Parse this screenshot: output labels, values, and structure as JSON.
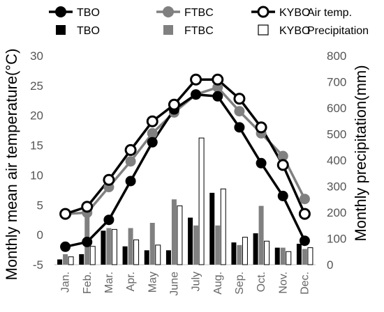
{
  "chart_data": {
    "type": "line+bar (climate diagram)",
    "categories": [
      "Jan.",
      "Feb.",
      "Mar.",
      "Apr.",
      "May",
      "June",
      "July",
      "Aug.",
      "Sep.",
      "Oct.",
      "Nov.",
      "Dec."
    ],
    "left_axis": {
      "label": "Monthly mean air temperature(°C)",
      "ylim": [
        -5,
        30
      ],
      "ticks": [
        -5,
        0,
        5,
        10,
        15,
        20,
        25,
        30
      ]
    },
    "right_axis": {
      "label": "Monthly precipitation(mm)",
      "ylim": [
        0,
        800
      ],
      "ticks": [
        0,
        100,
        200,
        300,
        400,
        500,
        600,
        700,
        800
      ]
    },
    "temperature_series": [
      {
        "name": "TBO",
        "color": "#000000",
        "marker": "filled-circle",
        "values": [
          -2.0,
          -1.2,
          2.5,
          9.0,
          15.5,
          21.0,
          23.5,
          23.2,
          18.0,
          12.0,
          6.5,
          -1.0
        ]
      },
      {
        "name": "FTBC",
        "color": "#808080",
        "marker": "filled-circle",
        "values": [
          3.5,
          3.7,
          8.0,
          12.3,
          17.0,
          20.5,
          23.5,
          24.7,
          20.7,
          17.0,
          13.2,
          6.0
        ]
      },
      {
        "name": "KYBO",
        "color": "#000000",
        "marker": "open-circle",
        "values": [
          3.5,
          4.7,
          9.2,
          14.2,
          19.0,
          21.8,
          26.0,
          26.0,
          22.8,
          18.0,
          11.7,
          3.5
        ]
      }
    ],
    "precipitation_series": [
      {
        "name": "TBO",
        "color": "#000000",
        "fill": "solid-black",
        "values": [
          20,
          40,
          130,
          70,
          55,
          55,
          180,
          275,
          85,
          120,
          65,
          80
        ]
      },
      {
        "name": "FTBC",
        "color": "#808080",
        "fill": "solid-gray",
        "values": [
          40,
          200,
          140,
          140,
          160,
          250,
          150,
          150,
          75,
          225,
          65,
          60
        ]
      },
      {
        "name": "KYBO",
        "color": "#000000",
        "fill": "white-outlined",
        "values": [
          30,
          70,
          135,
          95,
          75,
          225,
          485,
          290,
          105,
          90,
          50,
          65
        ]
      }
    ],
    "legend": {
      "placement": "top",
      "row1_suffix": "Air temp.",
      "row2_suffix": "Precipitation"
    },
    "grid": false
  }
}
